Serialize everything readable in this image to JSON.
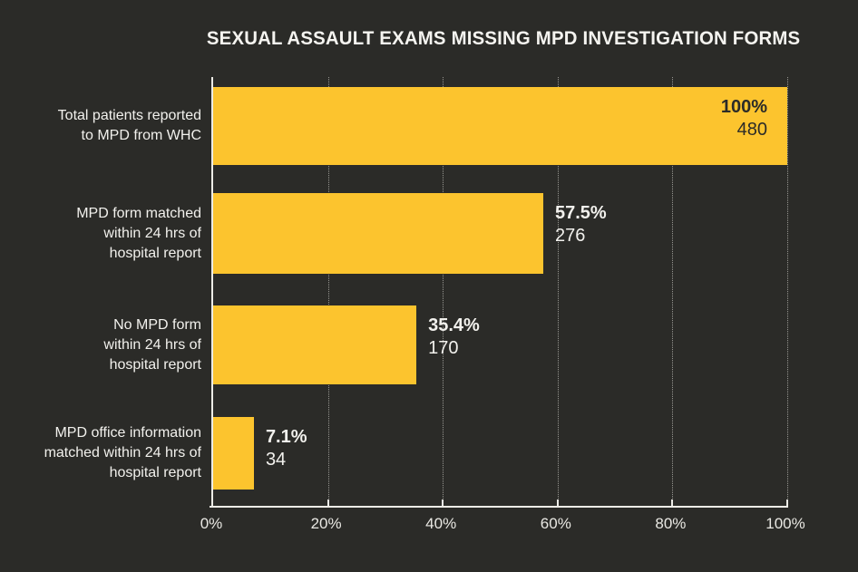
{
  "page": {
    "background_color": "#2B2B28"
  },
  "chart_data": {
    "type": "bar",
    "orientation": "horizontal",
    "title": "SEXUAL ASSAULT EXAMS MISSING MPD INVESTIGATION FORMS",
    "categories": [
      "Total patients reported to MPD from WHC",
      "MPD form matched within 24 hrs of hospital report",
      "No MPD form within 24 hrs of hospital report",
      "MPD office information matched within 24 hrs of hospital report"
    ],
    "category_lines": [
      [
        "Total patients reported",
        "to MPD from WHC"
      ],
      [
        "MPD form matched",
        "within 24 hrs of",
        "hospital report"
      ],
      [
        "No MPD form",
        "within 24 hrs of",
        "hospital report"
      ],
      [
        "MPD office information",
        "matched within 24 hrs of",
        "hospital report"
      ]
    ],
    "values": [
      100,
      57.5,
      35.4,
      7.1
    ],
    "counts": [
      480,
      276,
      170,
      34
    ],
    "value_labels": [
      "100%",
      "57.5%",
      "35.4%",
      "7.1%"
    ],
    "count_labels": [
      "480",
      "276",
      "170",
      "34"
    ],
    "value_label_placement": [
      "inside",
      "outside",
      "outside",
      "outside"
    ],
    "x_ticks": [
      "0%",
      "20%",
      "40%",
      "60%",
      "80%",
      "100%"
    ],
    "x_tick_values": [
      0,
      20,
      40,
      60,
      80,
      100
    ],
    "xlim": [
      0,
      100
    ],
    "grid": "vertical-dotted",
    "legend": "none",
    "bar_color": "#FCC42E",
    "axis_color": "#EDECE7",
    "text_color": "#F2F1ED",
    "in_bar_text_color": "#2B2B28",
    "background_color": "#2B2B28"
  }
}
